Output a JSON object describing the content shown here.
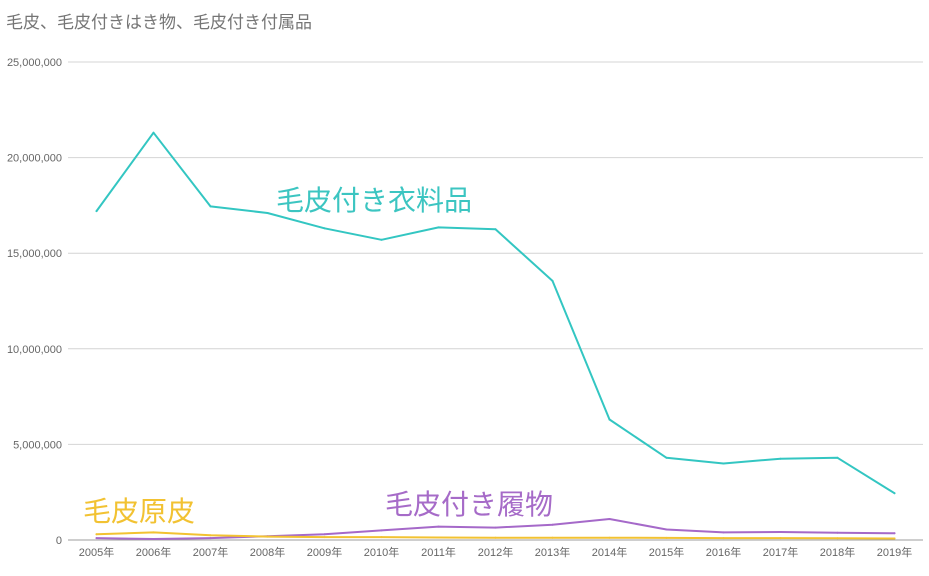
{
  "chart_data": {
    "type": "line",
    "title": "毛皮、毛皮付きはき物、毛皮付き付属品",
    "xlabel": "",
    "ylabel": "",
    "ylim": [
      0,
      25000000
    ],
    "grid": true,
    "legend": "inline labels",
    "categories": [
      "2005年",
      "2006年",
      "2007年",
      "2008年",
      "2009年",
      "2010年",
      "2011年",
      "2012年",
      "2013年",
      "2014年",
      "2015年",
      "2016年",
      "2017年",
      "2018年",
      "2019年"
    ],
    "yticks": [
      {
        "value": 0,
        "label": "0"
      },
      {
        "value": 5000000,
        "label": "5,000,000"
      },
      {
        "value": 10000000,
        "label": "10,000,000"
      },
      {
        "value": 15000000,
        "label": "15,000,000"
      },
      {
        "value": 20000000,
        "label": "20,000,000"
      },
      {
        "value": 25000000,
        "label": "25,000,000"
      }
    ],
    "series": [
      {
        "name": "毛皮付き衣料品",
        "color": "#33c6c2",
        "values": [
          17200000,
          21300000,
          17450000,
          17100000,
          16300000,
          15700000,
          16350000,
          16250000,
          13550000,
          6300000,
          4300000,
          4000000,
          4250000,
          4300000,
          2450000
        ]
      },
      {
        "name": "毛皮原皮",
        "color": "#f2c232",
        "values": [
          300000,
          400000,
          250000,
          180000,
          150000,
          150000,
          130000,
          120000,
          120000,
          120000,
          110000,
          100000,
          100000,
          90000,
          80000
        ]
      },
      {
        "name": "毛皮付き履物",
        "color": "#a569c9",
        "values": [
          100000,
          50000,
          100000,
          200000,
          300000,
          500000,
          700000,
          650000,
          800000,
          1100000,
          550000,
          400000,
          420000,
          380000,
          350000
        ]
      }
    ]
  }
}
